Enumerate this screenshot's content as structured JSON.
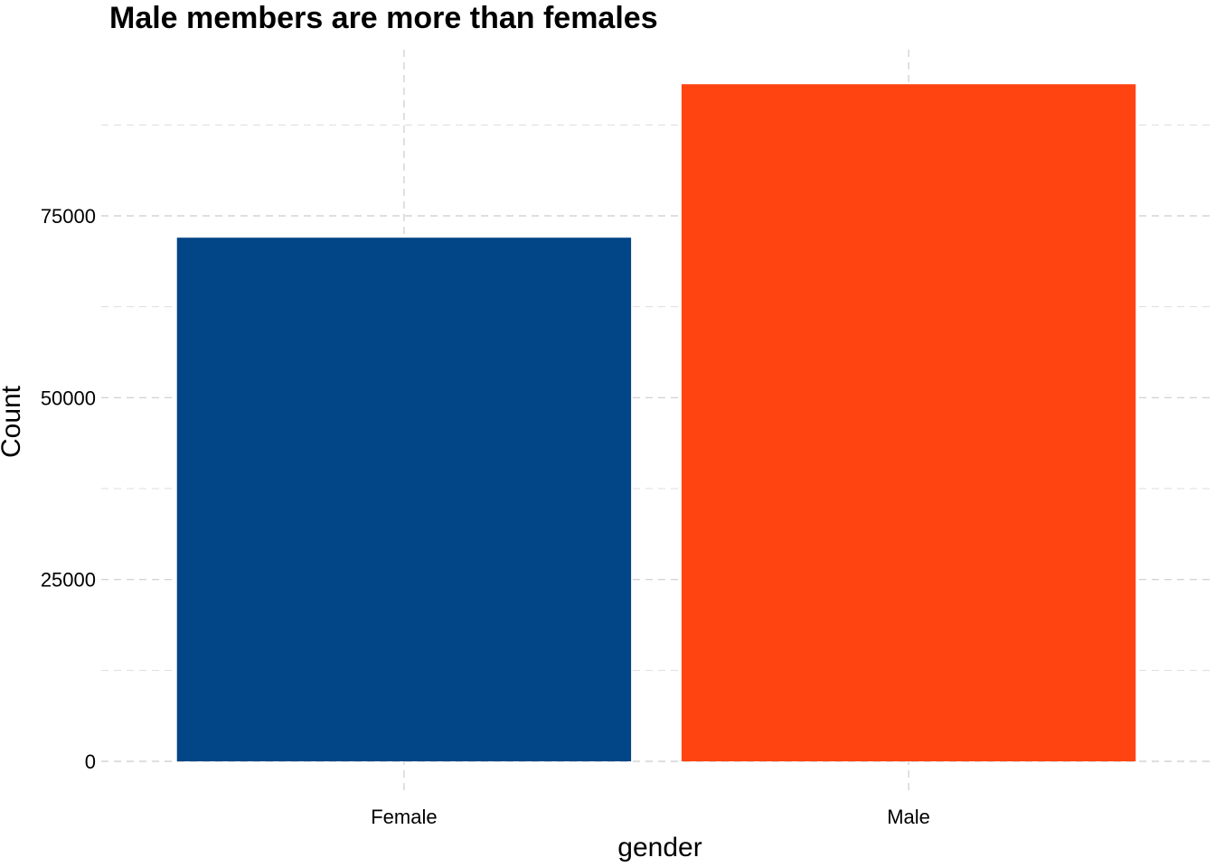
{
  "chart_data": {
    "type": "bar",
    "title": "Male members are more than females",
    "xlabel": "gender",
    "ylabel": "Count",
    "categories": [
      "Female",
      "Male"
    ],
    "values": [
      72000,
      93100
    ],
    "colors": [
      "#024687",
      "#FF4412"
    ],
    "y_ticks": [
      0,
      25000,
      50000,
      75000
    ],
    "ylim": [
      0,
      97000
    ],
    "grid": true,
    "legend": "none"
  }
}
